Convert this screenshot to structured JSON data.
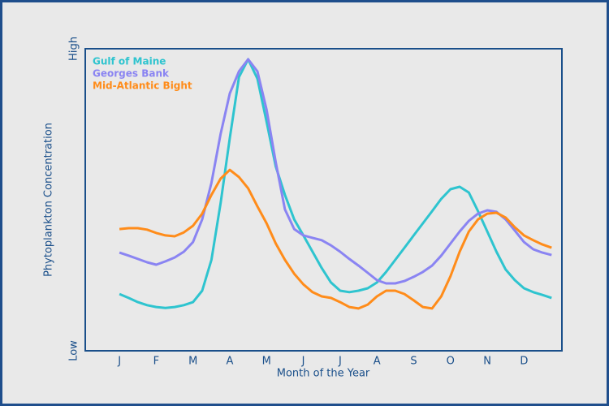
{
  "chart_data": {
    "type": "line",
    "x_label": "Month of the Year",
    "y_label": "Phytoplankton Concentration",
    "x": [
      0,
      0.25,
      0.5,
      0.75,
      1,
      1.25,
      1.5,
      1.75,
      2,
      2.25,
      2.5,
      2.75,
      3,
      3.25,
      3.5,
      3.75,
      4,
      4.25,
      4.5,
      4.75,
      5,
      5.25,
      5.5,
      5.75,
      6,
      6.25,
      6.5,
      6.75,
      7,
      7.25,
      7.5,
      7.75,
      8,
      8.25,
      8.5,
      8.75,
      9,
      9.25,
      9.5,
      9.75,
      10,
      10.25,
      10.5,
      10.75,
      11,
      11.25,
      11.5,
      11.75
    ],
    "series": [
      {
        "name": "Gulf of Maine",
        "color": "#2ec4cf",
        "values": [
          18.8,
          17.5,
          16.1,
          15.1,
          14.5,
          14.2,
          14.5,
          15.1,
          16.1,
          19.9,
          30.1,
          48.9,
          70.4,
          90.6,
          96.5,
          90.1,
          75.8,
          61.0,
          51.6,
          43.5,
          38.2,
          32.8,
          27.4,
          22.6,
          19.9,
          19.4,
          19.9,
          20.7,
          22.6,
          26.1,
          30.1,
          34.1,
          38.2,
          42.2,
          46.2,
          50.3,
          53.5,
          54.3,
          52.4,
          46.2,
          39.5,
          32.8,
          26.9,
          23.4,
          20.7,
          19.4,
          18.5,
          17.5
        ]
      },
      {
        "name": "Georges Bank",
        "color": "#8a84f2",
        "values": [
          32.5,
          31.5,
          30.4,
          29.3,
          28.5,
          29.6,
          30.9,
          32.8,
          36.0,
          43.5,
          55.6,
          71.8,
          85.2,
          92.5,
          96.5,
          92.5,
          79.8,
          62.4,
          46.8,
          40.3,
          38.2,
          37.4,
          36.6,
          34.9,
          32.8,
          30.4,
          28.2,
          25.8,
          23.4,
          22.3,
          22.3,
          23.1,
          24.5,
          26.1,
          28.2,
          31.5,
          35.5,
          39.5,
          43.0,
          45.4,
          46.5,
          46.0,
          43.5,
          39.8,
          36.0,
          33.6,
          32.5,
          31.7
        ]
      },
      {
        "name": "Mid-Atlantic Bight",
        "color": "#ff8c1a",
        "values": [
          40.3,
          40.6,
          40.6,
          40.1,
          39.0,
          38.2,
          37.9,
          39.2,
          41.4,
          45.4,
          51.6,
          57.0,
          59.9,
          57.5,
          53.8,
          47.8,
          42.2,
          35.5,
          30.1,
          25.5,
          22.0,
          19.4,
          18.0,
          17.5,
          16.1,
          14.5,
          14.0,
          15.3,
          18.0,
          19.9,
          19.9,
          18.8,
          16.7,
          14.5,
          14.0,
          18.0,
          24.7,
          32.8,
          39.5,
          43.5,
          45.4,
          45.7,
          44.1,
          40.9,
          38.2,
          36.6,
          35.2,
          34.1
        ]
      }
    ],
    "xlim": [
      -0.93,
      12.03
    ],
    "xticks": [
      {
        "value": 0,
        "label": "J"
      },
      {
        "value": 1,
        "label": "F"
      },
      {
        "value": 2,
        "label": "M"
      },
      {
        "value": 3,
        "label": "A"
      },
      {
        "value": 4,
        "label": "M"
      },
      {
        "value": 5,
        "label": "J"
      },
      {
        "value": 6,
        "label": "J"
      },
      {
        "value": 7,
        "label": "A"
      },
      {
        "value": 8,
        "label": "S"
      },
      {
        "value": 9,
        "label": "O"
      },
      {
        "value": 10,
        "label": "N"
      },
      {
        "value": 11,
        "label": "D"
      }
    ],
    "ylim": [
      0,
      100
    ],
    "yticks": [
      {
        "value": 0,
        "label": "Low"
      },
      {
        "value": 100,
        "label": "High"
      }
    ],
    "grid": false,
    "legend": "upper left"
  }
}
